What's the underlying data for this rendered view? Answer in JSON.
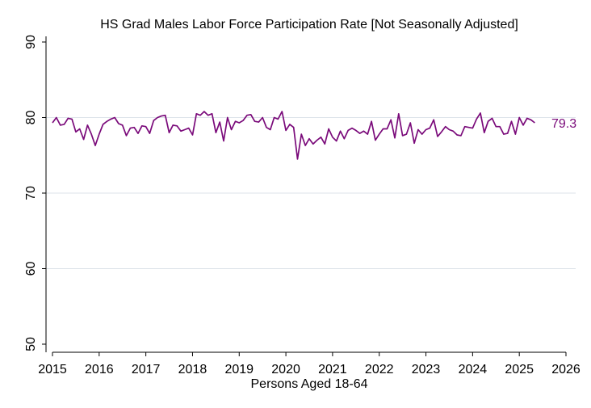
{
  "chart_data": {
    "type": "line",
    "title": "HS Grad Males Labor Force Participation Rate [Not Seasonally Adjusted]",
    "xlabel": "Persons Aged 18-64",
    "ylabel": "",
    "xlim": [
      2015,
      2026
    ],
    "ylim": [
      50,
      90
    ],
    "x_ticks": [
      "2015",
      "2016",
      "2017",
      "2018",
      "2019",
      "2020",
      "2021",
      "2022",
      "2023",
      "2024",
      "2025",
      "2026"
    ],
    "y_ticks": [
      "50",
      "60",
      "70",
      "80",
      "90"
    ],
    "grid": true,
    "series_color": "#7a0a7a",
    "last_value_label": "79.3",
    "series": [
      {
        "x": [
          2015.0,
          2015.083,
          2015.167,
          2015.25,
          2015.333,
          2015.417,
          2015.5,
          2015.583,
          2015.667,
          2015.75,
          2015.833,
          2015.917,
          2016.0,
          2016.083,
          2016.167,
          2016.25,
          2016.333,
          2016.417,
          2016.5,
          2016.583,
          2016.667,
          2016.75,
          2016.833,
          2016.917,
          2017.0,
          2017.083,
          2017.167,
          2017.25,
          2017.333,
          2017.417,
          2017.5,
          2017.583,
          2017.667,
          2017.75,
          2017.833,
          2017.917,
          2018.0,
          2018.083,
          2018.167,
          2018.25,
          2018.333,
          2018.417,
          2018.5,
          2018.583,
          2018.667,
          2018.75,
          2018.833,
          2018.917,
          2019.0,
          2019.083,
          2019.167,
          2019.25,
          2019.333,
          2019.417,
          2019.5,
          2019.583,
          2019.667,
          2019.75,
          2019.833,
          2019.917,
          2020.0,
          2020.083,
          2020.167,
          2020.25,
          2020.333,
          2020.417,
          2020.5,
          2020.583,
          2020.667,
          2020.75,
          2020.833,
          2020.917,
          2021.0,
          2021.083,
          2021.167,
          2021.25,
          2021.333,
          2021.417,
          2021.5,
          2021.583,
          2021.667,
          2021.75,
          2021.833,
          2021.917,
          2022.0,
          2022.083,
          2022.167,
          2022.25,
          2022.333,
          2022.417,
          2022.5,
          2022.583,
          2022.667,
          2022.75,
          2022.833,
          2022.917,
          2023.0,
          2023.083,
          2023.167,
          2023.25,
          2023.333,
          2023.417,
          2023.5,
          2023.583,
          2023.667,
          2023.75,
          2023.833,
          2023.917,
          2024.0,
          2024.083,
          2024.167,
          2024.25,
          2024.333,
          2024.417,
          2024.5,
          2024.583,
          2024.667,
          2024.75,
          2024.833,
          2024.917,
          2025.0,
          2025.083,
          2025.167,
          2025.25,
          2025.333
        ],
        "values": [
          79.3,
          80.0,
          79.0,
          79.1,
          79.9,
          79.8,
          78.1,
          78.5,
          77.1,
          79.0,
          77.8,
          76.3,
          77.8,
          79.1,
          79.5,
          79.8,
          80.0,
          79.2,
          79.0,
          77.6,
          78.6,
          78.7,
          77.9,
          78.9,
          78.8,
          77.9,
          79.6,
          80.0,
          80.2,
          80.3,
          78.0,
          79.0,
          78.9,
          78.2,
          78.4,
          78.6,
          77.7,
          80.5,
          80.3,
          80.8,
          80.3,
          80.5,
          78.0,
          79.4,
          76.9,
          80.0,
          78.4,
          79.5,
          79.3,
          79.6,
          80.3,
          80.4,
          79.5,
          79.4,
          80.0,
          78.7,
          78.4,
          80.0,
          79.8,
          80.8,
          78.3,
          79.1,
          78.7,
          74.5,
          77.8,
          76.3,
          77.2,
          76.5,
          77.0,
          77.4,
          76.5,
          78.5,
          77.4,
          76.9,
          78.2,
          77.2,
          78.3,
          78.6,
          78.3,
          77.9,
          78.2,
          77.8,
          79.5,
          77.0,
          77.8,
          78.5,
          78.5,
          79.7,
          77.3,
          80.5,
          77.6,
          77.8,
          79.3,
          76.6,
          78.4,
          77.8,
          78.4,
          78.6,
          79.7,
          77.5,
          78.1,
          78.8,
          78.4,
          78.2,
          77.7,
          77.6,
          78.8,
          78.7,
          78.6,
          79.8,
          80.6,
          78.0,
          79.5,
          79.9,
          78.8,
          78.8,
          77.8,
          77.9,
          79.5,
          77.8,
          80.0,
          79.0,
          79.9,
          79.7,
          79.3
        ]
      }
    ]
  }
}
